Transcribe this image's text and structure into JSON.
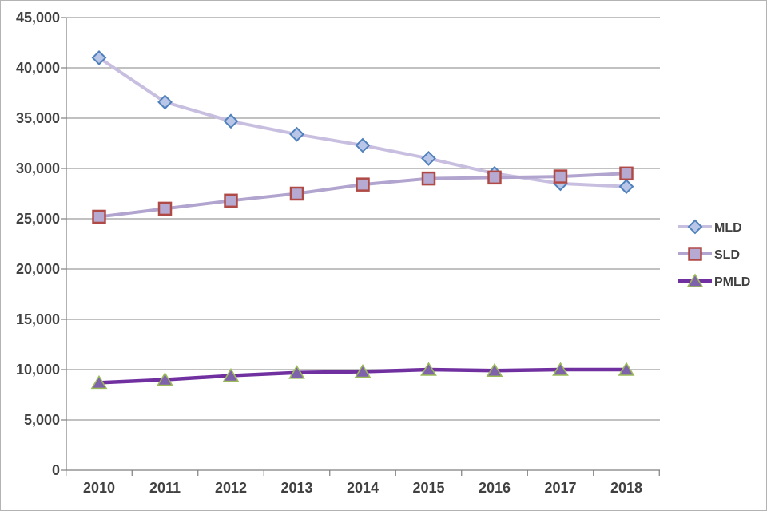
{
  "page": {
    "background": "#ffffff",
    "border_color": "#b3b3b3"
  },
  "chart_data": {
    "type": "line",
    "title": "",
    "xlabel": "",
    "ylabel": "",
    "categories": [
      "2010",
      "2011",
      "2012",
      "2013",
      "2014",
      "2015",
      "2016",
      "2017",
      "2018"
    ],
    "series": [
      {
        "name": "MLD",
        "values": [
          41000,
          36600,
          34700,
          33400,
          32300,
          31000,
          29500,
          28500,
          28200
        ],
        "line_color": "#c8bfe0",
        "line_width": 4,
        "marker": "diamond",
        "marker_fill": "#b9c6e7",
        "marker_edge": "#4f81bd"
      },
      {
        "name": "SLD",
        "values": [
          25200,
          26000,
          26800,
          27500,
          28400,
          29000,
          29100,
          29200,
          29500
        ],
        "line_color": "#b1a4ce",
        "line_width": 4,
        "marker": "square",
        "marker_fill": "#b6a9d2",
        "marker_edge": "#b04a46"
      },
      {
        "name": "PMLD",
        "values": [
          8700,
          9000,
          9400,
          9700,
          9800,
          10000,
          9900,
          10000,
          10000
        ],
        "line_color": "#7030a0",
        "line_width": 4.5,
        "marker": "triangle",
        "marker_fill": "#7e62ab",
        "marker_edge": "#9bbb59"
      }
    ],
    "x_axis": {
      "tick_labels": [
        "2010",
        "2011",
        "2012",
        "2013",
        "2014",
        "2015",
        "2016",
        "2017",
        "2018"
      ]
    },
    "y_axis": {
      "min": 0,
      "max": 45000,
      "step": 5000,
      "tick_labels": [
        "0",
        "5,000",
        "10,000",
        "15,000",
        "20,000",
        "25,000",
        "30,000",
        "35,000",
        "40,000",
        "45,000"
      ]
    },
    "legend": {
      "position": "right",
      "entries": [
        "MLD",
        "SLD",
        "PMLD"
      ]
    },
    "grid": true,
    "grid_color": "#9c9c9c",
    "axis_color": "#7f7f7f",
    "text_color": "#404040"
  }
}
